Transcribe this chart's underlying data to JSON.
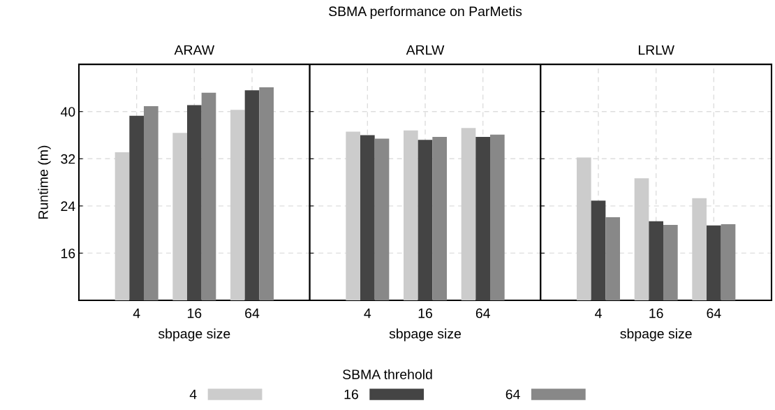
{
  "chart_data": [
    {
      "type": "bar",
      "title": "ARAW",
      "annotations": [
        "SBMA performance on ParMetis"
      ],
      "xlabel": "sbpage size",
      "ylabel": "Runtime (m)",
      "categories": [
        "4",
        "16",
        "64"
      ],
      "legend_title": "SBMA threhold",
      "legend": "bottom",
      "grid": true,
      "ylim": [
        8,
        48
      ],
      "yticks": [
        16,
        24,
        32,
        40
      ],
      "series": [
        {
          "name": "4",
          "color": "#cccccc",
          "values": [
            33.1,
            36.4,
            40.3
          ]
        },
        {
          "name": "16",
          "color": "#444444",
          "values": [
            39.3,
            41.1,
            43.6
          ]
        },
        {
          "name": "64",
          "color": "#888888",
          "values": [
            40.9,
            43.2,
            44.1
          ]
        }
      ]
    },
    {
      "type": "bar",
      "title": "ARLW",
      "xlabel": "sbpage size",
      "categories": [
        "4",
        "16",
        "64"
      ],
      "grid": true,
      "ylim": [
        8,
        48
      ],
      "yticks": [
        16,
        24,
        32,
        40
      ],
      "tick_labels": "x",
      "series": [
        {
          "color": "#cccccc",
          "values": [
            36.6,
            36.8,
            37.2
          ]
        },
        {
          "color": "#444444",
          "values": [
            36.0,
            35.2,
            35.7
          ]
        },
        {
          "color": "#888888",
          "values": [
            35.4,
            35.7,
            36.1
          ]
        }
      ]
    },
    {
      "type": "bar",
      "title": "LRLW",
      "xlabel": "sbpage size",
      "categories": [
        "4",
        "16",
        "64"
      ],
      "grid": true,
      "ylim": [
        8,
        48
      ],
      "yticks": [
        16,
        24,
        32,
        40
      ],
      "tick_labels": "x",
      "series": [
        {
          "color": "#cccccc",
          "values": [
            32.2,
            28.7,
            25.3
          ]
        },
        {
          "color": "#444444",
          "values": [
            24.9,
            21.4,
            20.7
          ]
        },
        {
          "color": "#888888",
          "values": [
            22.1,
            20.8,
            20.9
          ]
        }
      ]
    }
  ]
}
